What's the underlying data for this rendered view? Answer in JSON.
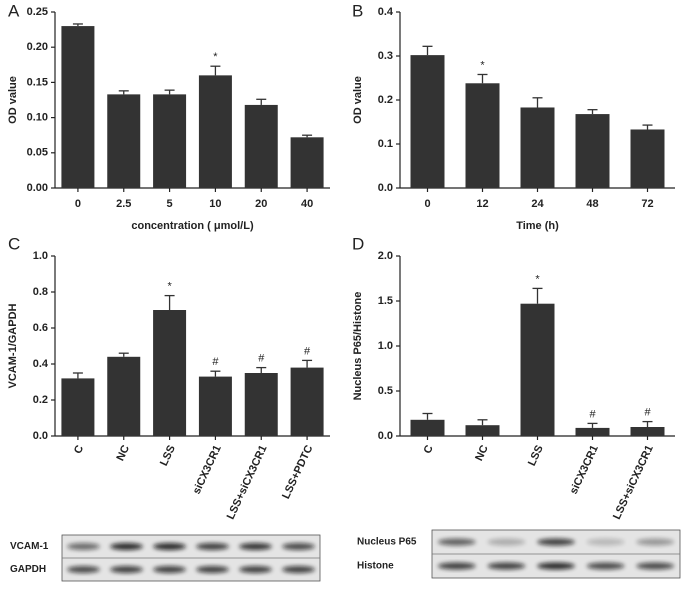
{
  "chart_data": [
    {
      "type": "bar",
      "panel": "A",
      "y_label": "OD value",
      "x_label": "concentration ( μmol/L)",
      "categories": [
        "0",
        "2.5",
        "5",
        "10",
        "20",
        "40"
      ],
      "values": [
        0.23,
        0.133,
        0.133,
        0.16,
        0.118,
        0.072
      ],
      "errors": [
        0.003,
        0.005,
        0.006,
        0.013,
        0.008,
        0.003
      ],
      "markers": [
        null,
        null,
        null,
        "*",
        null,
        null
      ],
      "color": "#333333",
      "ylim": [
        0,
        0.25
      ],
      "yticks": [
        {
          "value": 0,
          "label": "0.00"
        },
        0.05,
        {
          "value": 0.1,
          "label": "0.10"
        },
        0.15,
        {
          "value": 0.2,
          "label": "0.20"
        },
        0.25
      ]
    },
    {
      "type": "bar",
      "panel": "B",
      "y_label": "OD value",
      "x_label": "Time (h)",
      "categories": [
        "0",
        "12",
        "24",
        "48",
        "72"
      ],
      "values": [
        0.302,
        0.238,
        0.183,
        0.168,
        0.133
      ],
      "errors": [
        0.02,
        0.02,
        0.022,
        0.01,
        0.01
      ],
      "markers": [
        null,
        "*",
        null,
        null,
        null
      ],
      "color": "#333333",
      "ylim": [
        0,
        0.4
      ],
      "yticks": [
        {
          "value": 0,
          "label": "0.0"
        },
        0.1,
        0.2,
        0.3,
        0.4
      ]
    },
    {
      "type": "bar",
      "panel": "C",
      "y_label": "VCAM-1/GAPDH",
      "categories": [
        "C",
        "NC",
        "LSS",
        "siCX3CR1",
        "LSS+siCX3CR1",
        "LSS+PDTC"
      ],
      "values": [
        0.32,
        0.44,
        0.7,
        0.33,
        0.35,
        0.38
      ],
      "errors": [
        0.03,
        0.02,
        0.08,
        0.03,
        0.03,
        0.04
      ],
      "markers": [
        null,
        null,
        "*",
        "#",
        "#",
        "#"
      ],
      "color": "#333333",
      "ylim": [
        0,
        1
      ],
      "yticks": [
        {
          "value": 0,
          "label": "0.0"
        },
        0.2,
        0.4,
        0.6,
        0.8,
        {
          "value": 1,
          "label": "1.0"
        }
      ]
    },
    {
      "type": "bar",
      "panel": "D",
      "y_label": "Nucleus P65/Histone",
      "categories": [
        "C",
        "NC",
        "LSS",
        "siCX3CR1",
        "LSS+siCX3CR1"
      ],
      "values": [
        0.18,
        0.12,
        1.47,
        0.09,
        0.1
      ],
      "errors": [
        0.07,
        0.06,
        0.17,
        0.05,
        0.06
      ],
      "markers": [
        null,
        null,
        "*",
        "#",
        "#"
      ],
      "color": "#333333",
      "ylim": [
        0,
        2
      ],
      "yticks": [
        {
          "value": 0,
          "label": "0.0"
        },
        0.5,
        {
          "value": 1,
          "label": "1.0"
        },
        1.5,
        {
          "value": 2,
          "label": "2.0"
        }
      ]
    }
  ],
  "blots": [
    {
      "labels": [
        "VCAM-1",
        "GAPDH"
      ]
    },
    {
      "labels": [
        "Nucleus P65",
        "Histone"
      ]
    }
  ]
}
